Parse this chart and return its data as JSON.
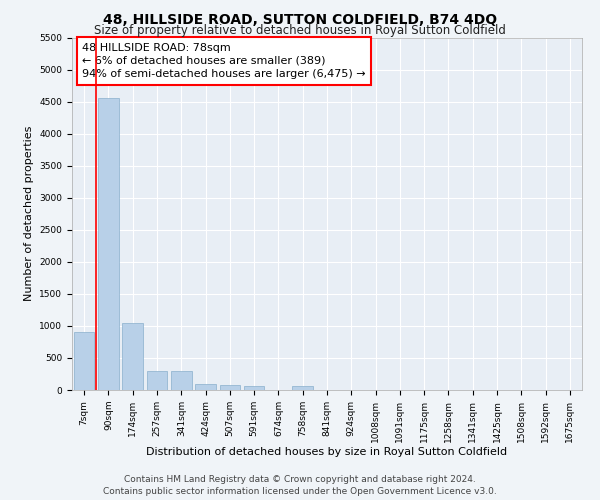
{
  "title": "48, HILLSIDE ROAD, SUTTON COLDFIELD, B74 4DQ",
  "subtitle": "Size of property relative to detached houses in Royal Sutton Coldfield",
  "xlabel": "Distribution of detached houses by size in Royal Sutton Coldfield",
  "ylabel": "Number of detached properties",
  "footnote1": "Contains HM Land Registry data © Crown copyright and database right 2024.",
  "footnote2": "Contains public sector information licensed under the Open Government Licence v3.0.",
  "annotation_line1": "48 HILLSIDE ROAD: 78sqm",
  "annotation_line2": "← 6% of detached houses are smaller (389)",
  "annotation_line3": "94% of semi-detached houses are larger (6,475) →",
  "categories": [
    "7sqm",
    "90sqm",
    "174sqm",
    "257sqm",
    "341sqm",
    "424sqm",
    "507sqm",
    "591sqm",
    "674sqm",
    "758sqm",
    "841sqm",
    "924sqm",
    "1008sqm",
    "1091sqm",
    "1175sqm",
    "1258sqm",
    "1341sqm",
    "1425sqm",
    "1508sqm",
    "1592sqm",
    "1675sqm"
  ],
  "values": [
    900,
    4550,
    1050,
    300,
    290,
    90,
    80,
    60,
    0,
    60,
    0,
    0,
    0,
    0,
    0,
    0,
    0,
    0,
    0,
    0,
    0
  ],
  "bar_color": "#b8d0e8",
  "bar_edge_color": "#8ab0cc",
  "red_line_x": 0.5,
  "ylim": [
    0,
    5500
  ],
  "yticks": [
    0,
    500,
    1000,
    1500,
    2000,
    2500,
    3000,
    3500,
    4000,
    4500,
    5000,
    5500
  ],
  "bg_color": "#f0f4f8",
  "plot_bg_color": "#e8eef5",
  "grid_color": "#ffffff",
  "title_fontsize": 10,
  "subtitle_fontsize": 8.5,
  "tick_fontsize": 6.5,
  "label_fontsize": 8,
  "footnote_fontsize": 6.5,
  "annotation_fontsize": 8
}
